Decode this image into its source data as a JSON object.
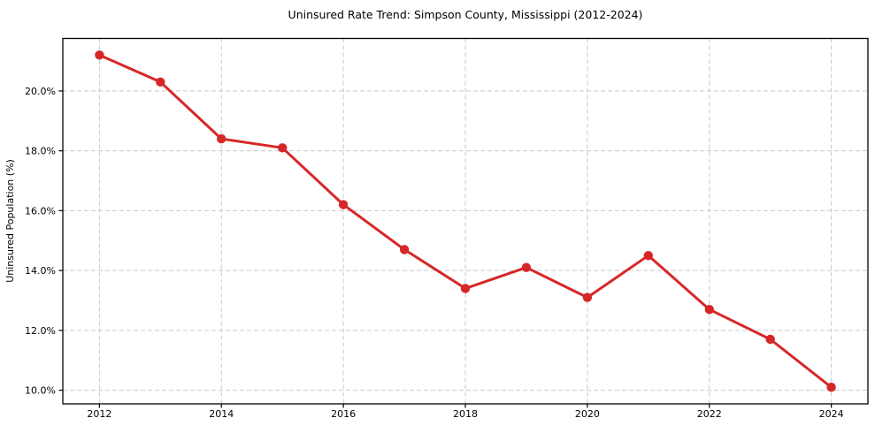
{
  "chart_data": {
    "type": "line",
    "title": "Uninsured Rate Trend: Simpson County, Mississippi (2012-2024)",
    "xlabel": "",
    "ylabel": "Uninsured Population (%)",
    "x": [
      2012,
      2013,
      2014,
      2015,
      2016,
      2017,
      2018,
      2019,
      2020,
      2021,
      2022,
      2023,
      2024
    ],
    "values": [
      21.2,
      20.3,
      18.4,
      18.1,
      16.2,
      14.7,
      13.4,
      14.1,
      13.1,
      14.5,
      12.7,
      11.7,
      10.1
    ],
    "x_ticks": [
      2012,
      2014,
      2016,
      2018,
      2020,
      2022,
      2024
    ],
    "y_ticks": [
      10,
      12,
      14,
      16,
      18,
      20
    ],
    "y_tick_labels": [
      "10.0%",
      "12.0%",
      "14.0%",
      "16.0%",
      "18.0%",
      "20.0%"
    ],
    "xlim": [
      2011.4,
      2024.6
    ],
    "ylim": [
      9.545,
      21.755
    ],
    "grid": true,
    "grid_style": "dashed",
    "legend_position": "none",
    "colors": {
      "line": "#d62728",
      "marker": "#d62728",
      "grid": "#c9c9c9",
      "spine": "#000000",
      "background": "#ffffff",
      "text": "#000000"
    }
  }
}
